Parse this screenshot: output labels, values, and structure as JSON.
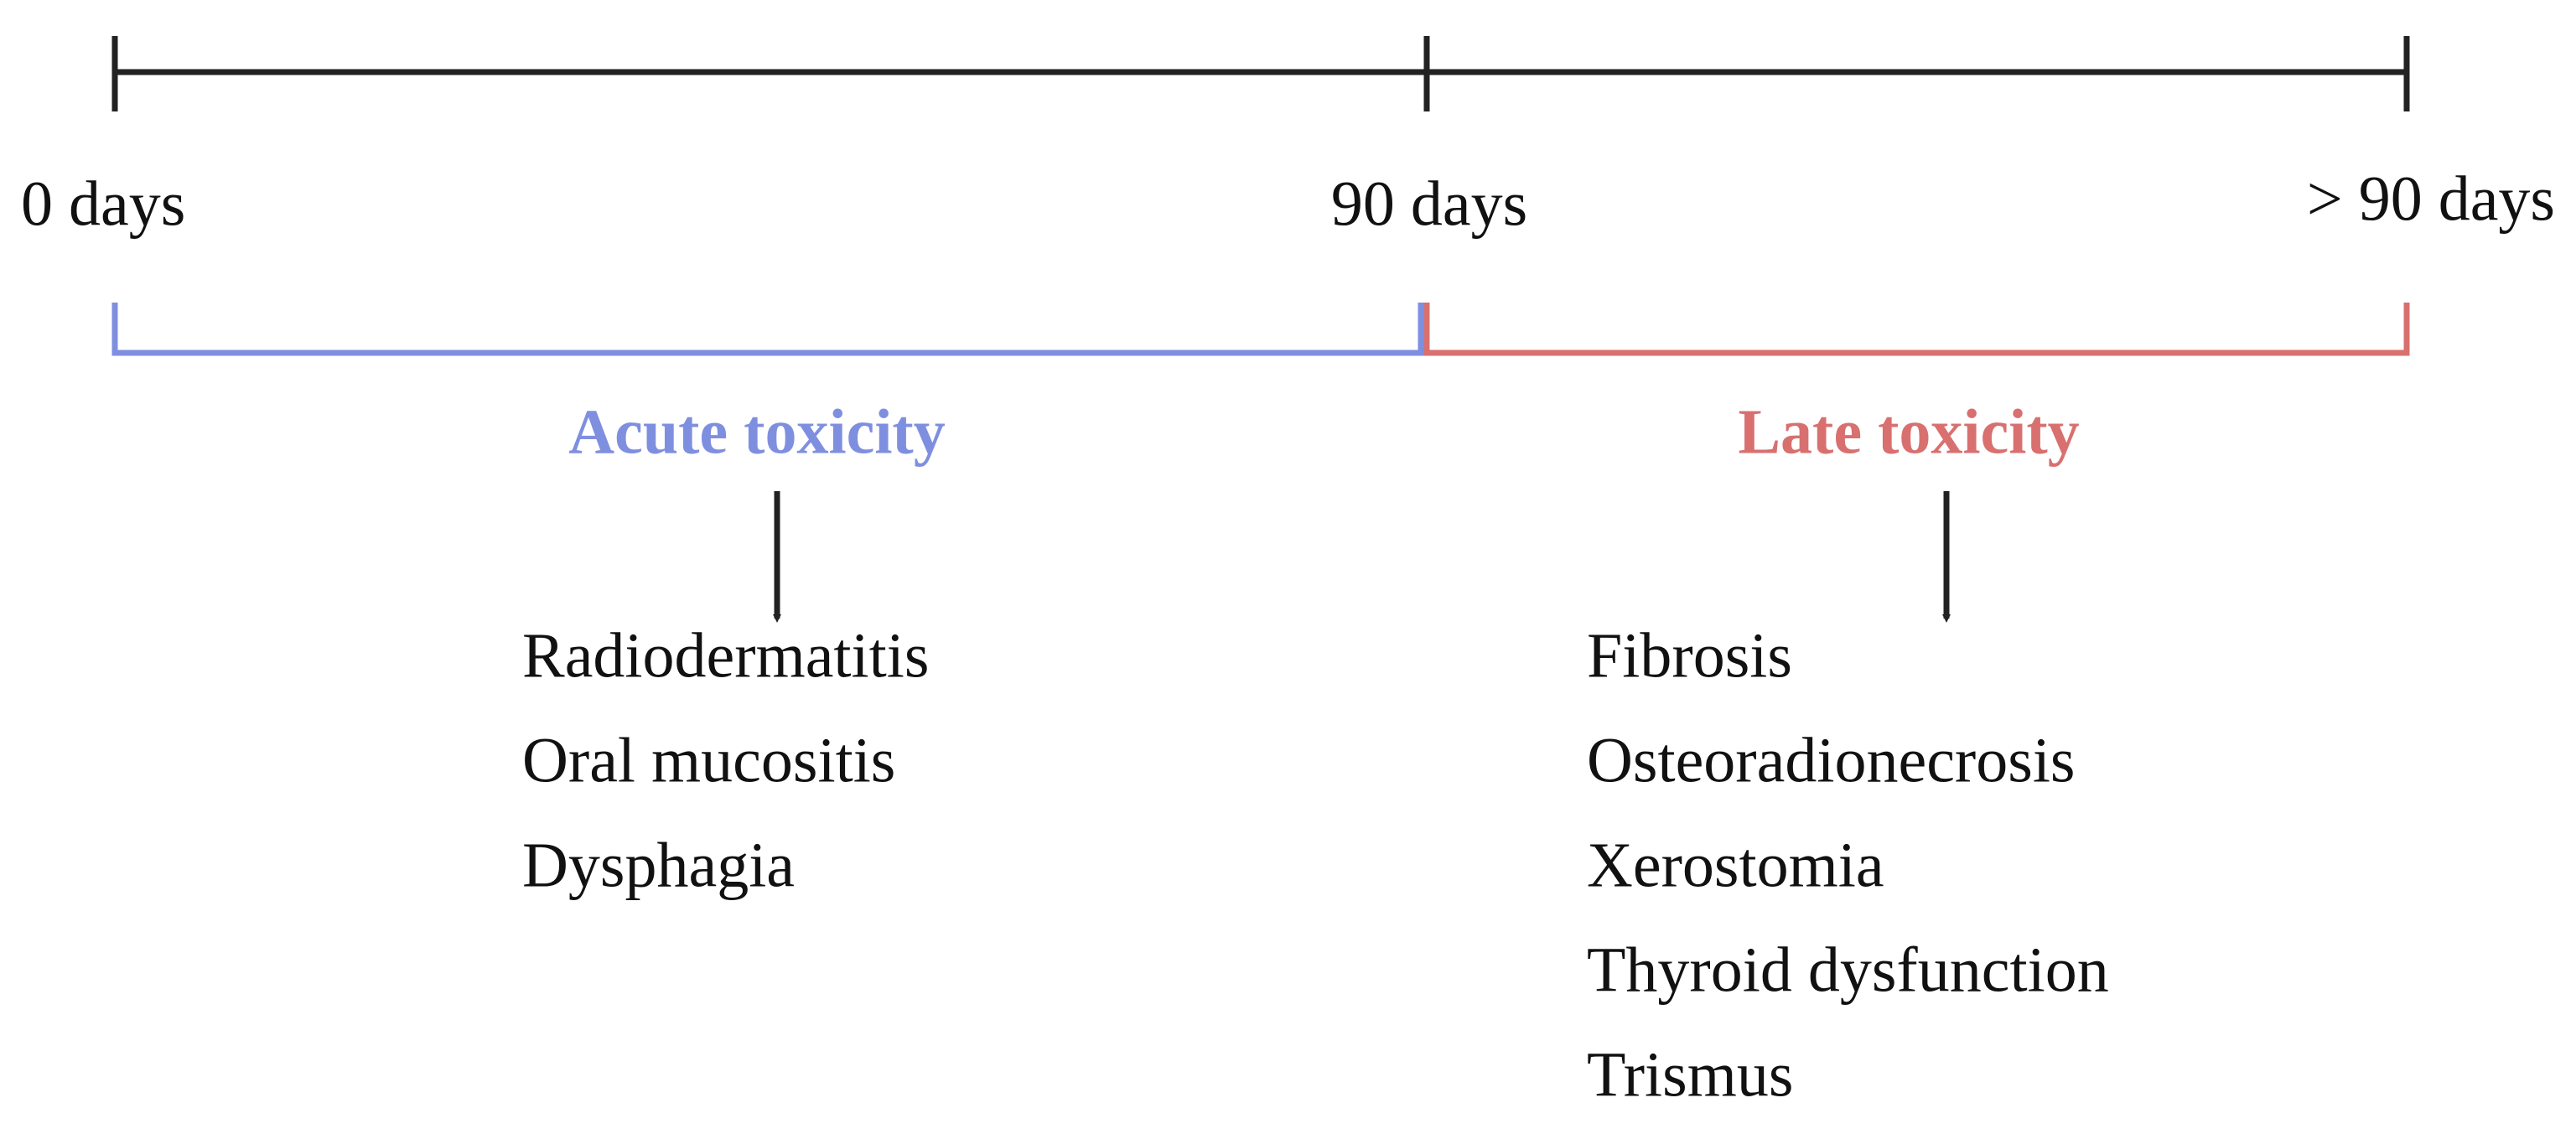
{
  "timeline": {
    "labels": [
      "0 days",
      "90 days",
      "> 90 days"
    ]
  },
  "phases": [
    {
      "title": "Acute toxicity",
      "items": [
        "Radiodermatitis",
        "Oral mucositis",
        "Dysphagia"
      ]
    },
    {
      "title": "Late toxicity",
      "items": [
        "Fibrosis",
        "Osteoradionecrosis",
        "Xerostomia",
        "Thyroid dysfunction",
        "Trismus"
      ]
    }
  ]
}
